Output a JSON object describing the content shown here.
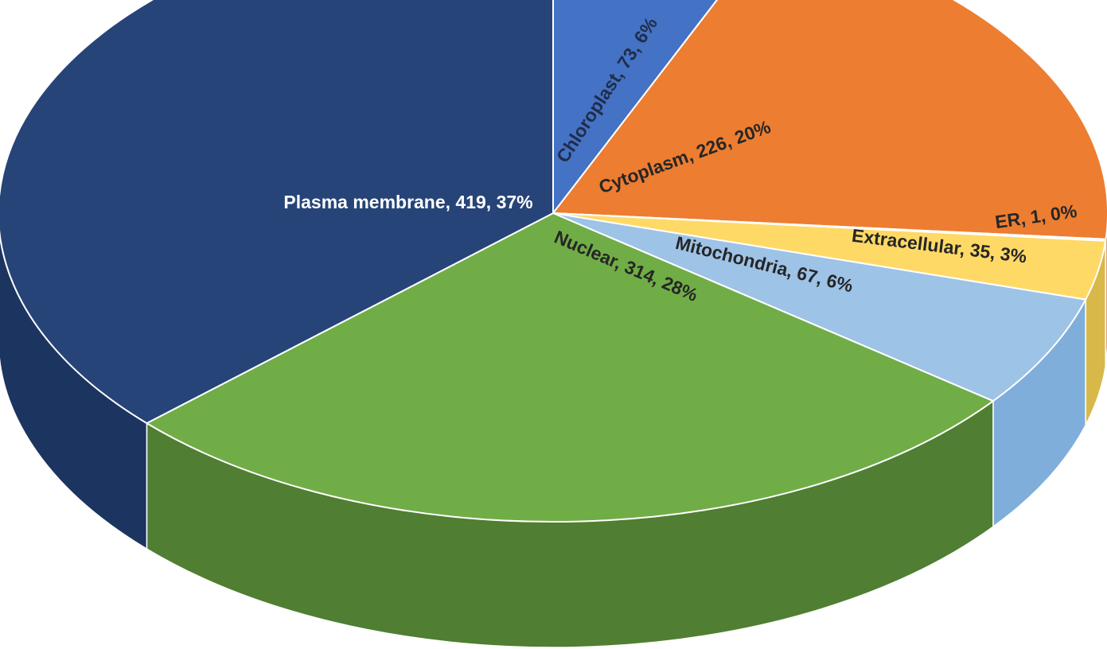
{
  "chart_data": {
    "type": "pie",
    "style": "3d",
    "start_angle_deg": 0,
    "direction": "clockwise",
    "slices": [
      {
        "name": "Chloroplast",
        "value": 73,
        "percent": "6%",
        "label": "Chloroplast, 73, 6%",
        "color": "#4472C4",
        "side_color": "#35599A",
        "label_color": "#1F2D4A"
      },
      {
        "name": "Cytoplasm",
        "value": 226,
        "percent": "20%",
        "label": "Cytoplasm, 226, 20%",
        "color": "#ED7D31",
        "side_color": "#BA5F22",
        "label_color": "#262626"
      },
      {
        "name": "ER",
        "value": 1,
        "percent": "0%",
        "label": "ER, 1, 0%",
        "color": "#A5A5A5",
        "side_color": "#7F7F7F",
        "label_color": "#262626"
      },
      {
        "name": "Extracellular",
        "value": 35,
        "percent": "3%",
        "label": "Extracellular, 35, 3%",
        "color": "#FFD966",
        "side_color": "#D9B84A",
        "label_color": "#262626"
      },
      {
        "name": "Mitochondria",
        "value": 67,
        "percent": "6%",
        "label": "Mitochondria, 67, 6%",
        "color": "#9DC3E6",
        "side_color": "#7FAEDB",
        "label_color": "#262626"
      },
      {
        "name": "Nuclear",
        "value": 314,
        "percent": "28%",
        "label": "Nuclear, 314, 28%",
        "color": "#70AD47",
        "side_color": "#507E32",
        "label_color": "#262626"
      },
      {
        "name": "Plasma membrane",
        "value": 419,
        "percent": "37%",
        "label": "Plasma membrane, 419, 37%",
        "color": "#264478",
        "side_color": "#1C3560",
        "label_color": "#FFFFFF"
      }
    ]
  }
}
